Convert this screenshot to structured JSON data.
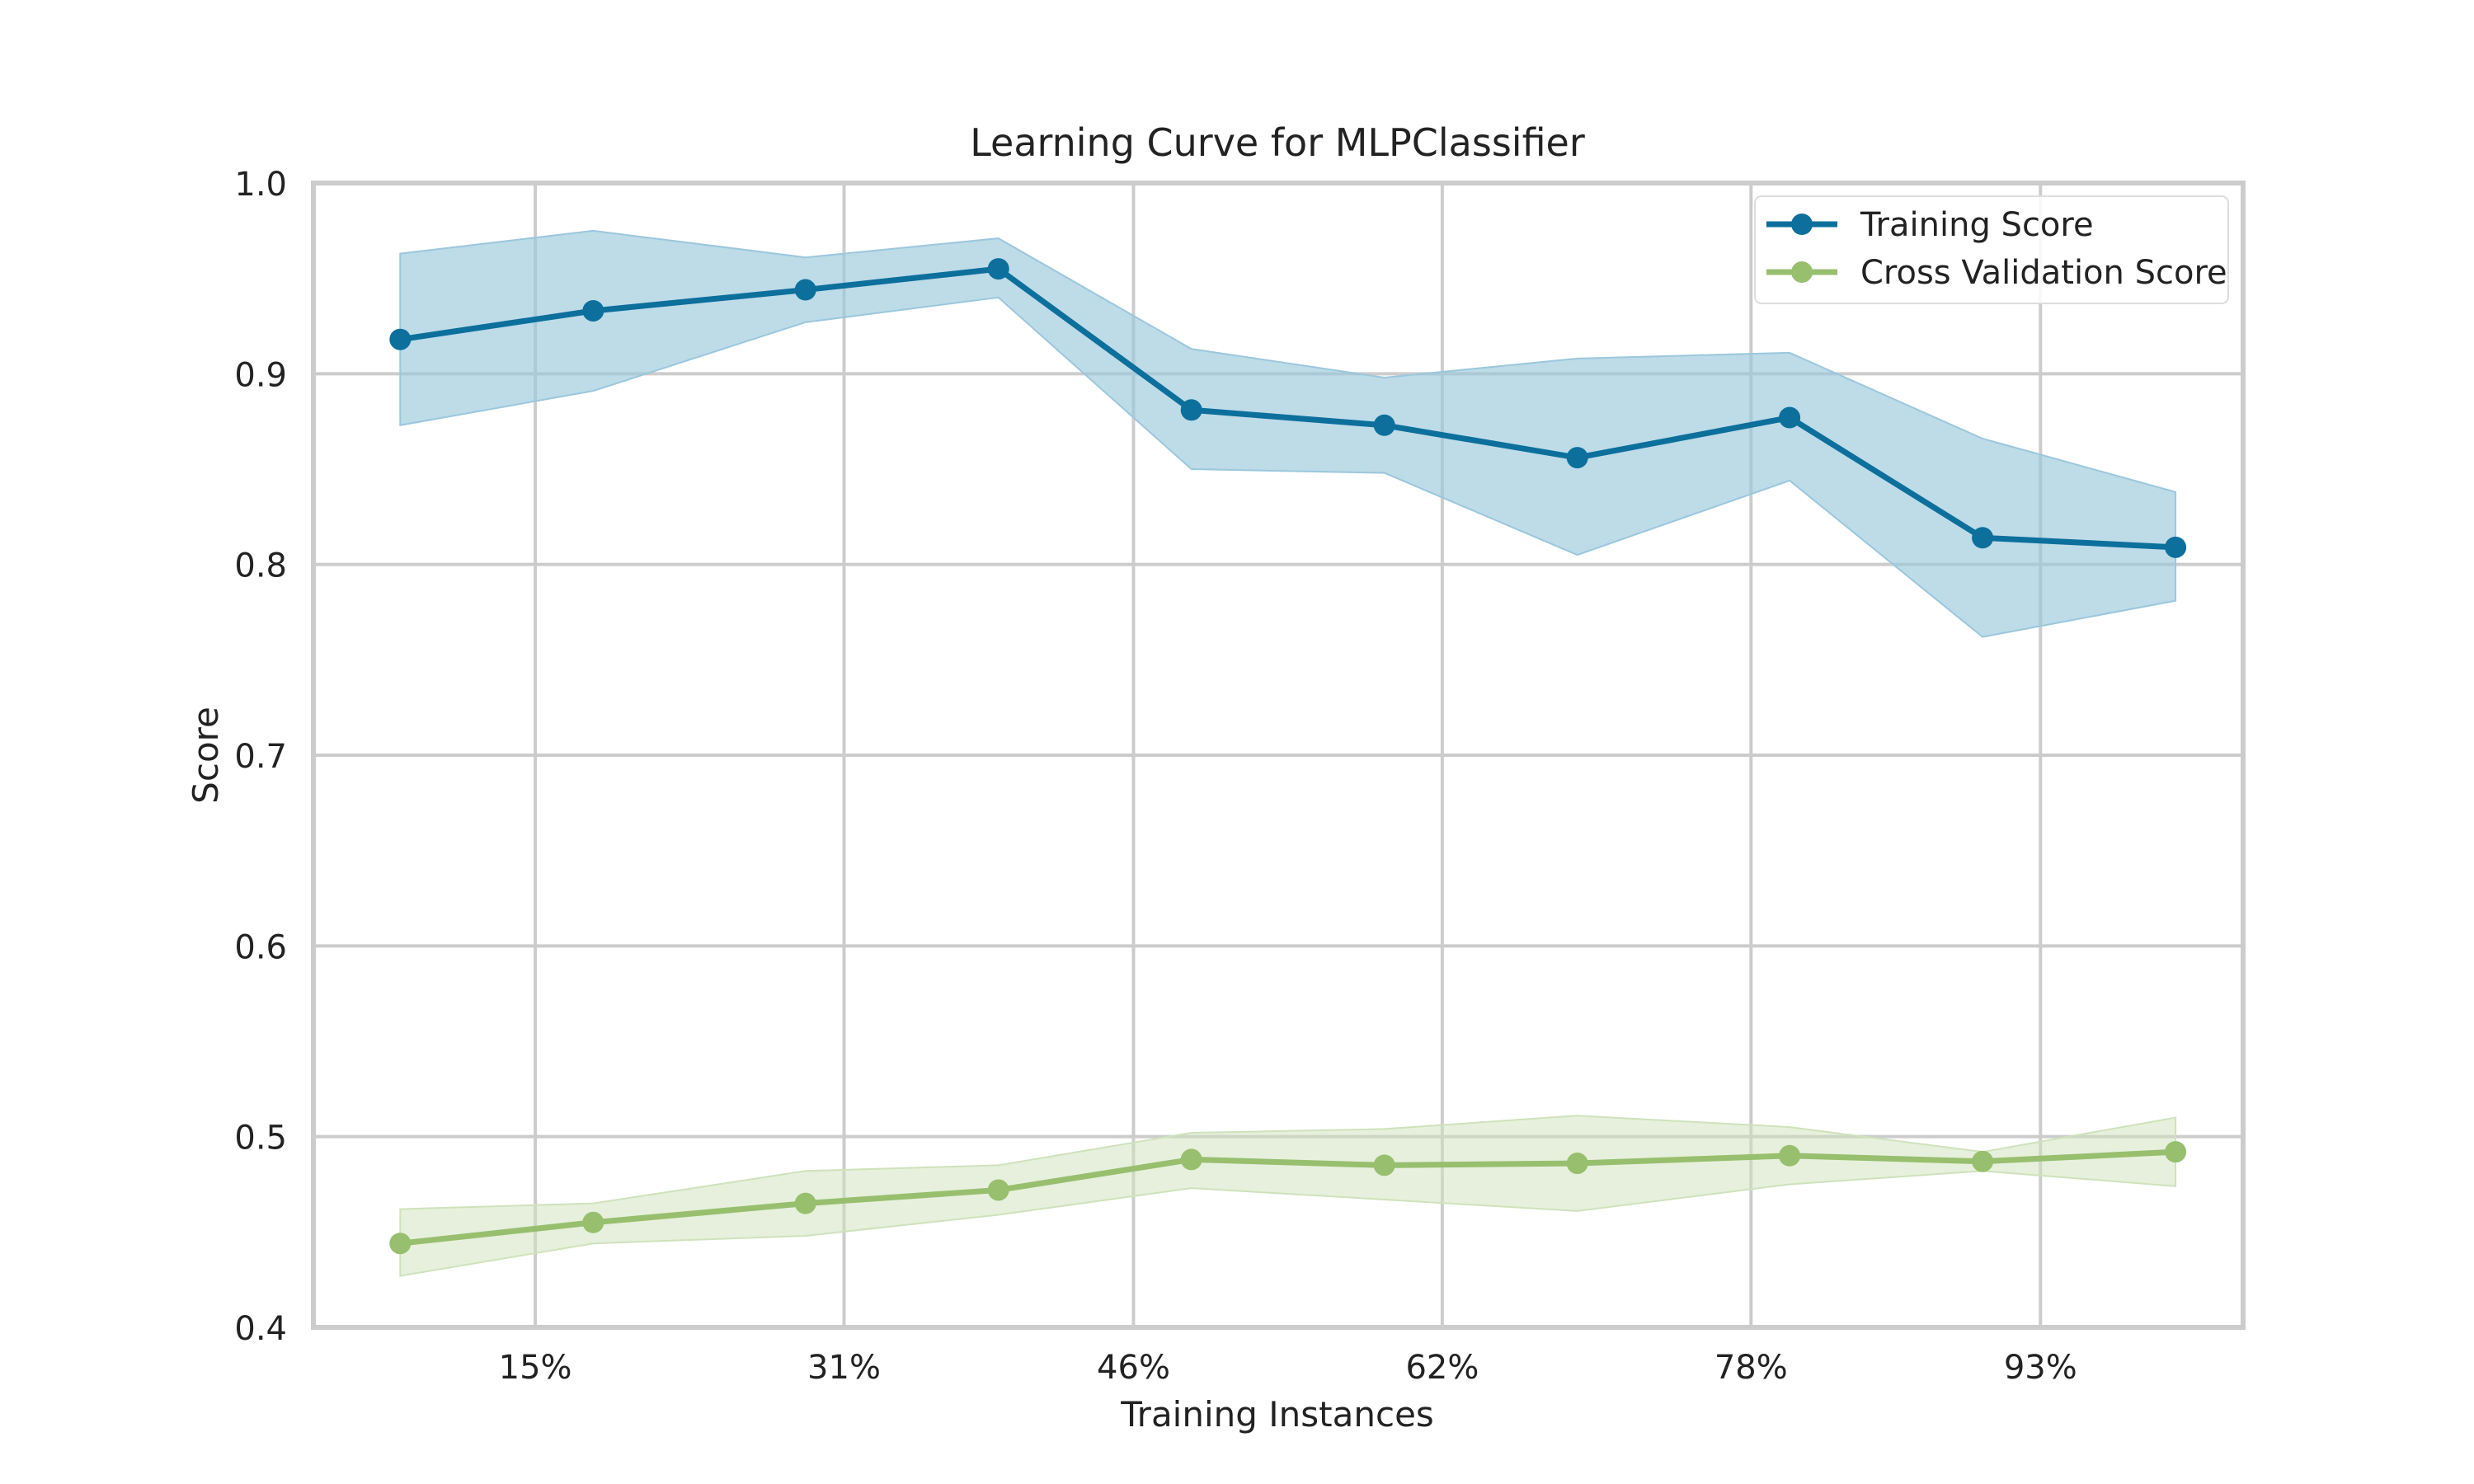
{
  "chart_data": {
    "type": "line",
    "title": "Learning Curve for MLPClassifier",
    "xlabel": "Training Instances",
    "ylabel": "Score",
    "xlim": [
      0.035,
      1.035
    ],
    "ylim": [
      0.4,
      1.0
    ],
    "xticks": [
      0.15,
      0.31,
      0.46,
      0.62,
      0.78,
      0.93
    ],
    "xtick_labels": [
      "15%",
      "31%",
      "46%",
      "62%",
      "78%",
      "93%"
    ],
    "yticks": [
      0.4,
      0.5,
      0.6,
      0.7,
      0.8,
      0.9,
      1.0
    ],
    "ytick_labels": [
      "0.4",
      "0.5",
      "0.6",
      "0.7",
      "0.8",
      "0.9",
      "1.0"
    ],
    "grid": true,
    "legend_position": "top-right",
    "x": [
      0.08,
      0.18,
      0.29,
      0.39,
      0.49,
      0.59,
      0.69,
      0.8,
      0.9,
      1.0
    ],
    "series": [
      {
        "name": "Training Score",
        "color": "#0c6f9c",
        "band_color": "#9bc7dc",
        "values": [
          0.918,
          0.933,
          0.944,
          0.955,
          0.881,
          0.873,
          0.856,
          0.877,
          0.814,
          0.809
        ],
        "upper": [
          0.963,
          0.975,
          0.961,
          0.971,
          0.913,
          0.898,
          0.908,
          0.911,
          0.866,
          0.838
        ],
        "lower": [
          0.873,
          0.891,
          0.927,
          0.94,
          0.85,
          0.848,
          0.805,
          0.844,
          0.762,
          0.781
        ]
      },
      {
        "name": "Cross Validation Score",
        "color": "#97bf6e",
        "band_color": "#cfe2bb",
        "values": [
          0.444,
          0.455,
          0.465,
          0.472,
          0.488,
          0.485,
          0.486,
          0.49,
          0.487,
          0.492
        ],
        "upper": [
          0.462,
          0.465,
          0.482,
          0.485,
          0.502,
          0.504,
          0.511,
          0.505,
          0.492,
          0.51
        ],
        "lower": [
          0.427,
          0.444,
          0.448,
          0.459,
          0.473,
          0.467,
          0.461,
          0.475,
          0.482,
          0.474
        ]
      }
    ]
  }
}
